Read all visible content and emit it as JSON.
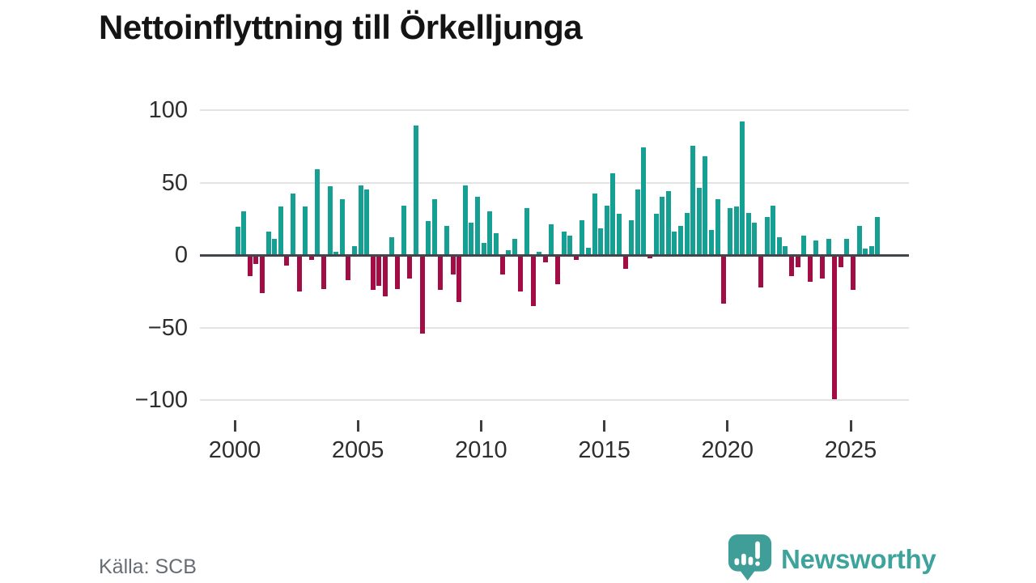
{
  "title": "Nettoinflyttning till Örkelljunga",
  "source": "Källa: SCB",
  "brand": {
    "name": "Newsworthy",
    "icon": "bar-chart-speech-bubble-icon",
    "color": "#3ea39b"
  },
  "colors": {
    "positive_bar": "#16a094",
    "negative_bar": "#a30d45",
    "zero_line": "#40464b",
    "gridline": "#e3e3e3",
    "axis_text": "#2e2e2e",
    "source_text": "#686d73"
  },
  "chart_data": {
    "type": "bar",
    "title": "Nettoinflyttning till Örkelljunga",
    "xlabel": "",
    "ylabel": "",
    "frequency": "quarterly",
    "start_year": 2000,
    "start_quarter": 1,
    "values": [
      19,
      30,
      -14,
      -6,
      -26,
      16,
      11,
      33,
      -7,
      42,
      -25,
      33,
      -3,
      59,
      -23,
      47,
      2,
      38,
      -17,
      6,
      48,
      45,
      -24,
      -21,
      -28,
      12,
      -23,
      34,
      -16,
      89,
      -54,
      23,
      38,
      -24,
      20,
      -13,
      -32,
      48,
      22,
      40,
      8,
      30,
      15,
      -13,
      3,
      11,
      -25,
      32,
      -35,
      2,
      -5,
      21,
      -20,
      16,
      13,
      -3,
      24,
      5,
      42,
      18,
      34,
      56,
      28,
      -9,
      24,
      45,
      74,
      -2,
      28,
      40,
      44,
      16,
      20,
      29,
      75,
      46,
      68,
      17,
      38,
      -33,
      32,
      33,
      92,
      29,
      22,
      -22,
      26,
      34,
      12,
      6,
      -14,
      -8,
      13,
      -18,
      10,
      -16,
      11,
      -99,
      -8,
      11,
      -24,
      20,
      4,
      6,
      26
    ],
    "y_ticks": [
      100,
      50,
      0,
      -50,
      -100
    ],
    "y_tick_labels": [
      "100",
      "50",
      "0",
      "−50",
      "−100"
    ],
    "x_tick_years": [
      2000,
      2005,
      2010,
      2015,
      2020,
      2025
    ],
    "x_tick_labels": [
      "2000",
      "2005",
      "2010",
      "2015",
      "2020",
      "2025"
    ],
    "ylim": [
      -110,
      105
    ],
    "grid": "horizontal",
    "legend": "none",
    "positive_color": "#16a094",
    "negative_color": "#a30d45"
  }
}
